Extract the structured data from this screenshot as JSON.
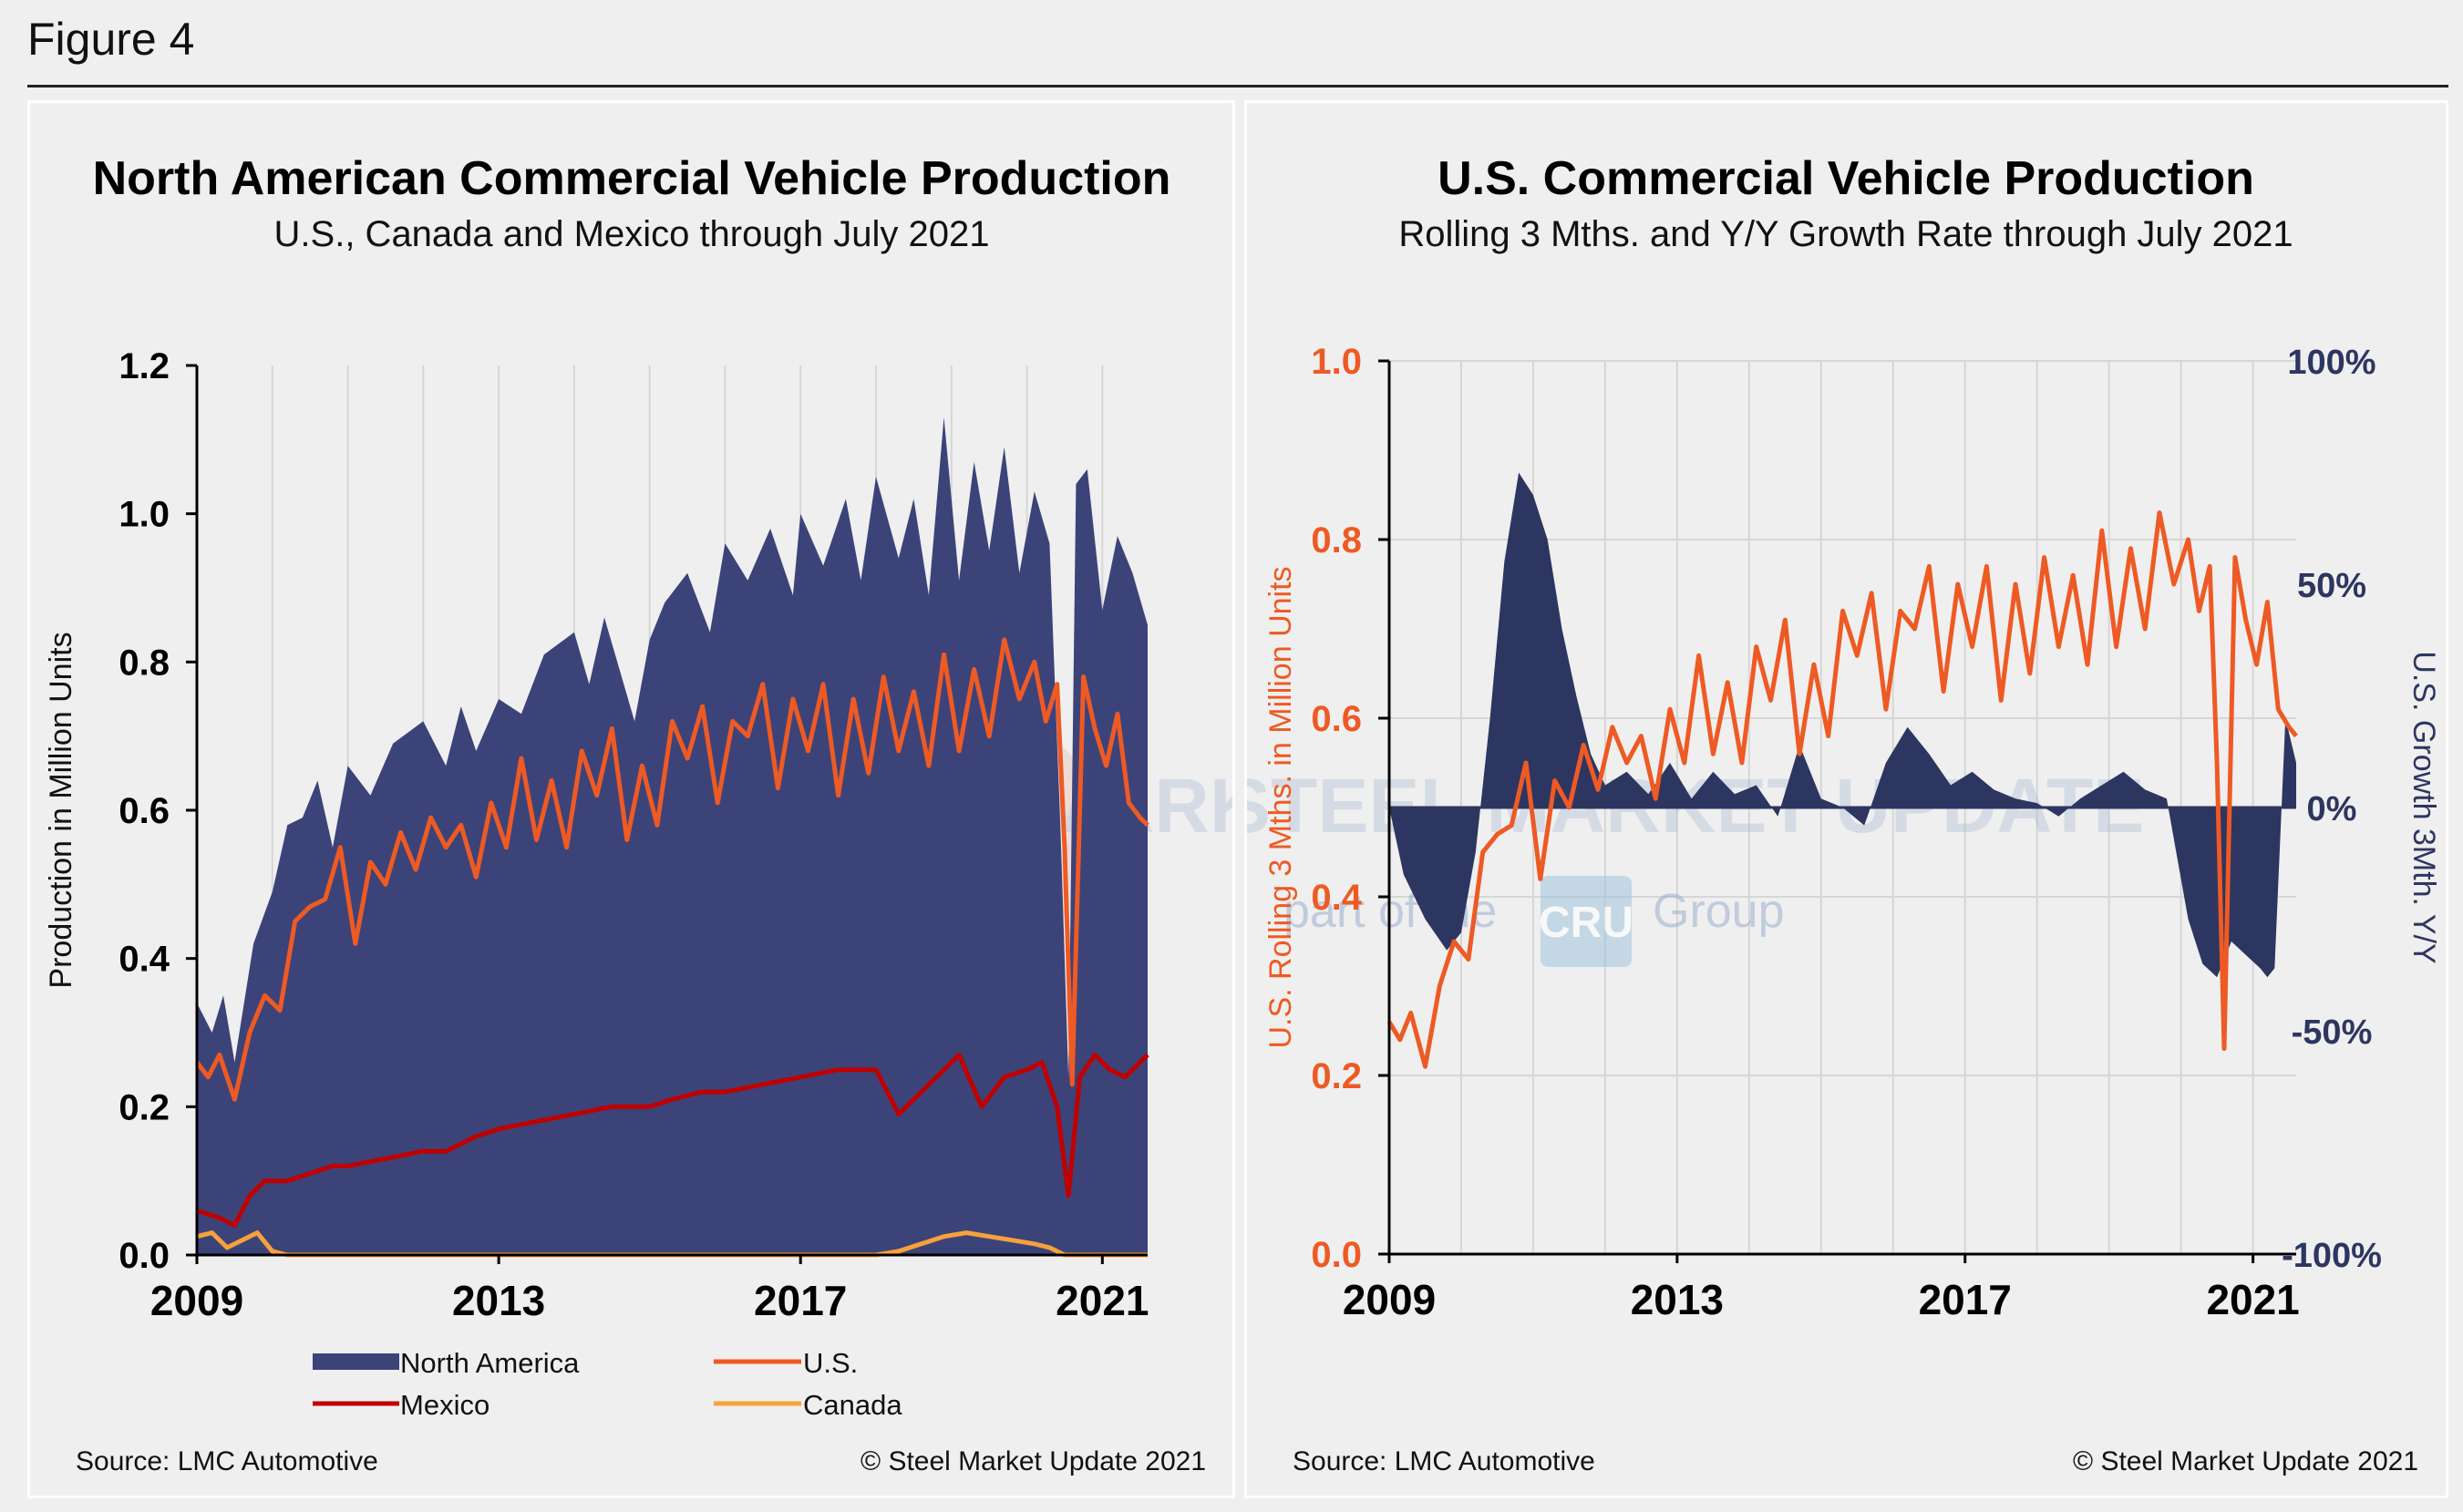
{
  "figure_label": "Figure 4",
  "colors": {
    "north_america": "#3c4379",
    "us": "#ee5a24",
    "mexico": "#c00000",
    "canada": "#f7a13a",
    "growth": "#2d3660",
    "grid": "#d6d6d6",
    "watermark": "#9aaecd"
  },
  "watermark": {
    "main": "STEEL MARKET UPDATE",
    "sub_left": "part of the",
    "logo": "CRU",
    "sub_right": "Group"
  },
  "left": {
    "title": "North American Commercial Vehicle Production",
    "subtitle": "U.S., Canada and Mexico through July 2021",
    "ylabel": "Production in Million Units",
    "yticks": [
      "1.2",
      "1.0",
      "0.8",
      "0.6",
      "0.4",
      "0.2",
      "0.0"
    ],
    "xticks": [
      "2009",
      "2013",
      "2017",
      "2021"
    ],
    "legend": {
      "north_america": "North America",
      "us": "U.S.",
      "mexico": "Mexico",
      "canada": "Canada"
    },
    "source": "Source: LMC Automotive",
    "copyright": "© Steel Market Update 2021"
  },
  "right": {
    "title": "U.S. Commercial Vehicle Production",
    "subtitle": "Rolling 3 Mths. and Y/Y Growth Rate through July 2021",
    "ylabel_left": "U.S. Rolling 3 Mths. in Million Units",
    "ylabel_right": "U.S. Growth 3Mth. Y/Y",
    "yticks_left": [
      "1.0",
      "0.8",
      "0.6",
      "0.4",
      "0.2",
      "0.0"
    ],
    "yticks_right": [
      "100%",
      "50%",
      "0%",
      "-50%",
      "-100%"
    ],
    "xticks": [
      "2009",
      "2013",
      "2017",
      "2021"
    ],
    "source": "Source: LMC Automotive",
    "copyright": "© Steel Market Update 2021"
  },
  "chart_data": [
    {
      "type": "area",
      "title": "North American Commercial Vehicle Production",
      "subtitle": "U.S., Canada and Mexico through July 2021",
      "ylabel": "Production in Million Units",
      "ylim": [
        0,
        1.2
      ],
      "x_unit": "year (fractional)",
      "series": [
        {
          "name": "North America",
          "type": "area",
          "x": [
            2009.0,
            2009.2,
            2009.35,
            2009.5,
            2009.75,
            2010.0,
            2010.2,
            2010.4,
            2010.6,
            2010.8,
            2011.0,
            2011.3,
            2011.6,
            2012.0,
            2012.3,
            2012.5,
            2012.7,
            2013.0,
            2013.3,
            2013.6,
            2014.0,
            2014.2,
            2014.4,
            2014.6,
            2014.8,
            2015.0,
            2015.2,
            2015.5,
            2015.8,
            2016.0,
            2016.3,
            2016.6,
            2016.9,
            2017.0,
            2017.3,
            2017.6,
            2017.8,
            2018.0,
            2018.3,
            2018.5,
            2018.7,
            2018.9,
            2019.1,
            2019.3,
            2019.5,
            2019.7,
            2019.9,
            2020.1,
            2020.3,
            2020.45,
            2020.55,
            2020.65,
            2020.8,
            2021.0,
            2021.2,
            2021.4,
            2021.6
          ],
          "y": [
            0.34,
            0.3,
            0.35,
            0.26,
            0.42,
            0.49,
            0.58,
            0.59,
            0.64,
            0.55,
            0.66,
            0.62,
            0.69,
            0.72,
            0.66,
            0.74,
            0.68,
            0.75,
            0.73,
            0.81,
            0.84,
            0.77,
            0.86,
            0.79,
            0.72,
            0.83,
            0.88,
            0.92,
            0.84,
            0.96,
            0.91,
            0.98,
            0.89,
            1.0,
            0.93,
            1.02,
            0.91,
            1.05,
            0.94,
            1.02,
            0.89,
            1.13,
            0.91,
            1.07,
            0.95,
            1.09,
            0.92,
            1.03,
            0.96,
            0.56,
            0.24,
            1.04,
            1.06,
            0.87,
            0.97,
            0.92,
            0.85
          ]
        },
        {
          "name": "U.S.",
          "type": "line",
          "x": [
            2009.0,
            2009.15,
            2009.3,
            2009.5,
            2009.7,
            2009.9,
            2010.1,
            2010.3,
            2010.5,
            2010.7,
            2010.9,
            2011.1,
            2011.3,
            2011.5,
            2011.7,
            2011.9,
            2012.1,
            2012.3,
            2012.5,
            2012.7,
            2012.9,
            2013.1,
            2013.3,
            2013.5,
            2013.7,
            2013.9,
            2014.1,
            2014.3,
            2014.5,
            2014.7,
            2014.9,
            2015.1,
            2015.3,
            2015.5,
            2015.7,
            2015.9,
            2016.1,
            2016.3,
            2016.5,
            2016.7,
            2016.9,
            2017.1,
            2017.3,
            2017.5,
            2017.7,
            2017.9,
            2018.1,
            2018.3,
            2018.5,
            2018.7,
            2018.9,
            2019.1,
            2019.3,
            2019.5,
            2019.7,
            2019.9,
            2020.1,
            2020.25,
            2020.4,
            2020.5,
            2020.6,
            2020.75,
            2020.9,
            2021.05,
            2021.2,
            2021.35,
            2021.5,
            2021.6
          ],
          "y": [
            0.26,
            0.24,
            0.27,
            0.21,
            0.3,
            0.35,
            0.33,
            0.45,
            0.47,
            0.48,
            0.55,
            0.42,
            0.53,
            0.5,
            0.57,
            0.52,
            0.59,
            0.55,
            0.58,
            0.51,
            0.61,
            0.55,
            0.67,
            0.56,
            0.64,
            0.55,
            0.68,
            0.62,
            0.71,
            0.56,
            0.66,
            0.58,
            0.72,
            0.67,
            0.74,
            0.61,
            0.72,
            0.7,
            0.77,
            0.63,
            0.75,
            0.68,
            0.77,
            0.62,
            0.75,
            0.65,
            0.78,
            0.68,
            0.76,
            0.66,
            0.81,
            0.68,
            0.79,
            0.7,
            0.83,
            0.75,
            0.8,
            0.72,
            0.77,
            0.55,
            0.23,
            0.78,
            0.71,
            0.66,
            0.73,
            0.61,
            0.59,
            0.58
          ]
        },
        {
          "name": "Mexico",
          "type": "line",
          "x": [
            2009.0,
            2009.3,
            2009.5,
            2009.7,
            2009.9,
            2010.2,
            2010.5,
            2010.8,
            2011.0,
            2011.5,
            2012.0,
            2012.3,
            2012.7,
            2013.0,
            2013.5,
            2014.0,
            2014.5,
            2015.0,
            2015.3,
            2015.7,
            2016.0,
            2016.5,
            2017.0,
            2017.5,
            2018.0,
            2018.3,
            2018.6,
            2018.9,
            2019.1,
            2019.4,
            2019.7,
            2020.0,
            2020.2,
            2020.4,
            2020.55,
            2020.7,
            2020.9,
            2021.1,
            2021.3,
            2021.6
          ],
          "y": [
            0.06,
            0.05,
            0.04,
            0.08,
            0.1,
            0.1,
            0.11,
            0.12,
            0.12,
            0.13,
            0.14,
            0.14,
            0.16,
            0.17,
            0.18,
            0.19,
            0.2,
            0.2,
            0.21,
            0.22,
            0.22,
            0.23,
            0.24,
            0.25,
            0.25,
            0.19,
            0.22,
            0.25,
            0.27,
            0.2,
            0.24,
            0.25,
            0.26,
            0.2,
            0.08,
            0.24,
            0.27,
            0.25,
            0.24,
            0.27
          ]
        },
        {
          "name": "Canada",
          "type": "line",
          "x": [
            2009.0,
            2009.2,
            2009.4,
            2009.6,
            2009.8,
            2010.0,
            2010.2,
            2011.0,
            2012.0,
            2013.0,
            2014.0,
            2015.0,
            2016.0,
            2017.0,
            2018.0,
            2018.3,
            2018.6,
            2018.9,
            2019.2,
            2019.5,
            2019.8,
            2020.1,
            2020.3,
            2020.5,
            2020.7,
            2021.6
          ],
          "y": [
            0.025,
            0.03,
            0.01,
            0.02,
            0.03,
            0.005,
            0.0,
            0.0,
            0.0,
            0.0,
            0.0,
            0.0,
            0.0,
            0.0,
            0.0,
            0.005,
            0.015,
            0.025,
            0.03,
            0.025,
            0.02,
            0.015,
            0.01,
            0.0,
            0.0,
            0.0
          ]
        }
      ],
      "legend": [
        "North America",
        "U.S.",
        "Mexico",
        "Canada"
      ],
      "legend_position": "bottom",
      "grid": "vertical"
    },
    {
      "type": "line",
      "title": "U.S. Commercial Vehicle Production",
      "subtitle": "Rolling 3 Mths. and Y/Y Growth Rate through July 2021",
      "ylabel": "U.S. Rolling 3 Mths. in Million Units",
      "ylabel_right": "U.S. Growth 3Mth. Y/Y",
      "ylim": [
        0,
        1.0
      ],
      "ylim_right": [
        -100,
        100
      ],
      "x_unit": "year (fractional)",
      "series": [
        {
          "name": "U.S. Rolling 3 Mths.",
          "axis": "left",
          "type": "line",
          "x": [
            2009.0,
            2009.15,
            2009.3,
            2009.5,
            2009.7,
            2009.9,
            2010.1,
            2010.3,
            2010.5,
            2010.7,
            2010.9,
            2011.1,
            2011.3,
            2011.5,
            2011.7,
            2011.9,
            2012.1,
            2012.3,
            2012.5,
            2012.7,
            2012.9,
            2013.1,
            2013.3,
            2013.5,
            2013.7,
            2013.9,
            2014.1,
            2014.3,
            2014.5,
            2014.7,
            2014.9,
            2015.1,
            2015.3,
            2015.5,
            2015.7,
            2015.9,
            2016.1,
            2016.3,
            2016.5,
            2016.7,
            2016.9,
            2017.1,
            2017.3,
            2017.5,
            2017.7,
            2017.9,
            2018.1,
            2018.3,
            2018.5,
            2018.7,
            2018.9,
            2019.1,
            2019.3,
            2019.5,
            2019.7,
            2019.9,
            2020.1,
            2020.25,
            2020.4,
            2020.5,
            2020.6,
            2020.75,
            2020.9,
            2021.05,
            2021.2,
            2021.35,
            2021.5,
            2021.6
          ],
          "y": [
            0.26,
            0.24,
            0.27,
            0.21,
            0.3,
            0.35,
            0.33,
            0.45,
            0.47,
            0.48,
            0.55,
            0.42,
            0.53,
            0.5,
            0.57,
            0.52,
            0.59,
            0.55,
            0.58,
            0.51,
            0.61,
            0.55,
            0.67,
            0.56,
            0.64,
            0.55,
            0.68,
            0.62,
            0.71,
            0.56,
            0.66,
            0.58,
            0.72,
            0.67,
            0.74,
            0.61,
            0.72,
            0.7,
            0.77,
            0.63,
            0.75,
            0.68,
            0.77,
            0.62,
            0.75,
            0.65,
            0.78,
            0.68,
            0.76,
            0.66,
            0.81,
            0.68,
            0.79,
            0.7,
            0.83,
            0.75,
            0.8,
            0.72,
            0.77,
            0.55,
            0.23,
            0.78,
            0.71,
            0.66,
            0.73,
            0.61,
            0.59,
            0.58
          ]
        },
        {
          "name": "U.S. Growth 3Mth. Y/Y",
          "axis": "right",
          "type": "area",
          "x": [
            2009.0,
            2009.2,
            2009.5,
            2009.8,
            2010.0,
            2010.2,
            2010.4,
            2010.6,
            2010.8,
            2011.0,
            2011.2,
            2011.4,
            2011.6,
            2011.8,
            2012.0,
            2012.3,
            2012.6,
            2012.9,
            2013.2,
            2013.5,
            2013.8,
            2014.1,
            2014.4,
            2014.7,
            2015.0,
            2015.3,
            2015.6,
            2015.9,
            2016.2,
            2016.5,
            2016.8,
            2017.1,
            2017.4,
            2017.7,
            2018.0,
            2018.3,
            2018.6,
            2018.9,
            2019.2,
            2019.5,
            2019.8,
            2020.1,
            2020.3,
            2020.5,
            2020.7,
            2020.9,
            2021.1,
            2021.2,
            2021.3,
            2021.45,
            2021.6
          ],
          "y": [
            0,
            -15,
            -25,
            -32,
            -28,
            -10,
            20,
            55,
            75,
            70,
            60,
            40,
            25,
            12,
            5,
            8,
            3,
            10,
            2,
            8,
            3,
            5,
            -2,
            14,
            2,
            0,
            -4,
            10,
            18,
            12,
            5,
            8,
            4,
            2,
            1,
            -2,
            2,
            5,
            8,
            4,
            2,
            -25,
            -35,
            -38,
            -30,
            -33,
            -36,
            -38,
            -36,
            20,
            10
          ]
        }
      ],
      "grid": "vertical and horizontal"
    }
  ]
}
